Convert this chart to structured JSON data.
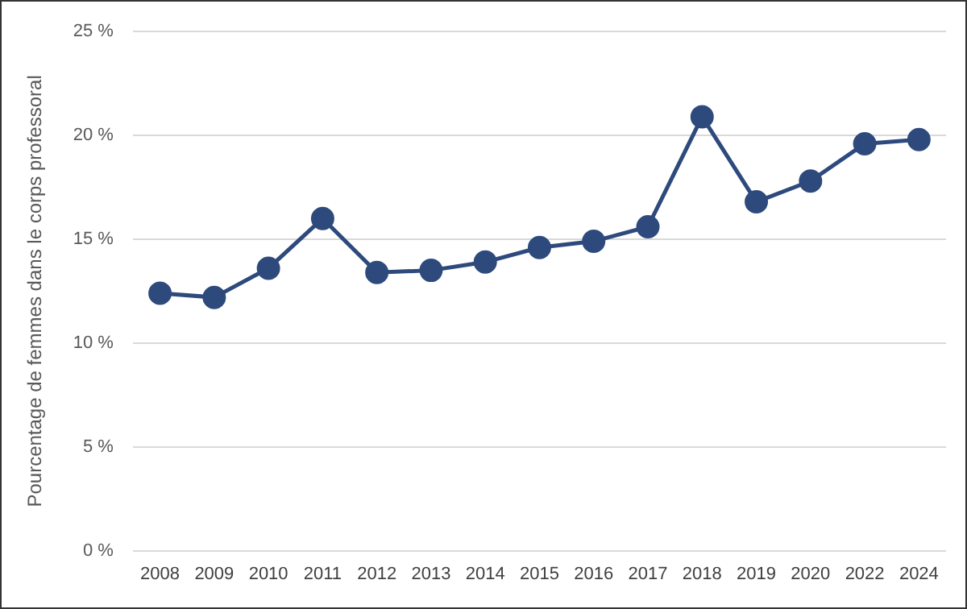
{
  "chart_data": {
    "type": "line",
    "ylabel": "Pourcentage de femmes dans le corps professoral",
    "categories": [
      "2008",
      "2009",
      "2010",
      "2011",
      "2012",
      "2013",
      "2014",
      "2015",
      "2016",
      "2017",
      "2018",
      "2019",
      "2020",
      "2022",
      "2024"
    ],
    "series": [
      {
        "color": "#2e4a7d",
        "values": [
          12.4,
          12.2,
          13.6,
          16.0,
          13.4,
          13.5,
          13.9,
          14.6,
          14.9,
          15.6,
          20.9,
          16.8,
          17.8,
          19.6,
          19.8
        ]
      }
    ],
    "ylim": [
      0,
      25
    ],
    "yticks": [
      {
        "value": 0,
        "label": "0 %"
      },
      {
        "value": 5,
        "label": "5 %"
      },
      {
        "value": 10,
        "label": "10 %"
      },
      {
        "value": 15,
        "label": "15 %"
      },
      {
        "value": 20,
        "label": "20 %"
      },
      {
        "value": 25,
        "label": "25 %"
      }
    ],
    "grid": "y",
    "legend": false,
    "marker": "circle",
    "line_style": "solid"
  }
}
